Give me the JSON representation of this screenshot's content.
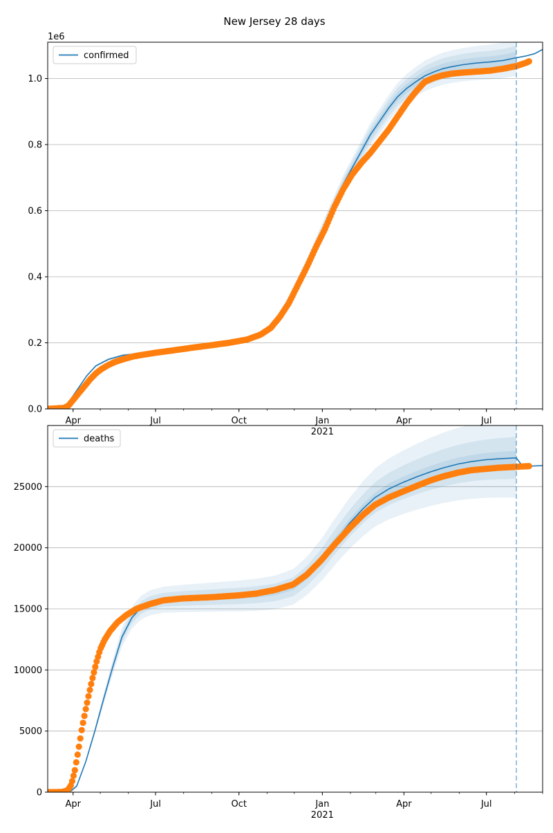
{
  "figure": {
    "title": "New Jersey 28 days"
  },
  "colors": {
    "model": "#1f77b4",
    "observed": "#ff7f0e",
    "grid": "#b0b0b0",
    "band": "#1f77b4"
  },
  "chart_data": [
    {
      "type": "line",
      "name": "confirmed",
      "legend": "confirmed",
      "legend_position": "upper left",
      "exponent_label": "1e6",
      "grid": "y",
      "x_ticks": [
        {
          "date": "2020-04-01",
          "label": "Apr"
        },
        {
          "date": "2020-07-01",
          "label": "Jul"
        },
        {
          "date": "2020-10-01",
          "label": "Oct"
        },
        {
          "date": "2021-01-01",
          "label": "Jan",
          "sublabel": "2021"
        },
        {
          "date": "2021-04-01",
          "label": "Apr"
        },
        {
          "date": "2021-07-01",
          "label": "Jul"
        }
      ],
      "y_ticks": [
        0,
        0.2,
        0.4,
        0.6,
        0.8,
        1.0
      ],
      "ylim": [
        0,
        1.11
      ],
      "xlim": [
        "2020-03-04",
        "2021-09-01"
      ],
      "forecast_start": "2021-08-03",
      "model": [
        [
          "2020-03-04",
          0
        ],
        [
          "2020-03-20",
          0.005
        ],
        [
          "2020-03-27",
          0.02
        ],
        [
          "2020-04-06",
          0.06
        ],
        [
          "2020-04-16",
          0.1
        ],
        [
          "2020-04-26",
          0.13
        ],
        [
          "2020-05-10",
          0.15
        ],
        [
          "2020-05-26",
          0.162
        ],
        [
          "2020-06-15",
          0.168
        ],
        [
          "2020-07-01",
          0.172
        ],
        [
          "2020-07-22",
          0.178
        ],
        [
          "2020-08-12",
          0.185
        ],
        [
          "2020-09-01",
          0.192
        ],
        [
          "2020-09-21",
          0.2
        ],
        [
          "2020-10-11",
          0.212
        ],
        [
          "2020-10-25",
          0.226
        ],
        [
          "2020-11-05",
          0.25
        ],
        [
          "2020-11-15",
          0.285
        ],
        [
          "2020-11-25",
          0.33
        ],
        [
          "2020-12-05",
          0.385
        ],
        [
          "2020-12-15",
          0.44
        ],
        [
          "2020-12-25",
          0.5
        ],
        [
          "2021-01-04",
          0.56
        ],
        [
          "2021-01-14",
          0.62
        ],
        [
          "2021-01-24",
          0.68
        ],
        [
          "2021-02-03",
          0.73
        ],
        [
          "2021-02-13",
          0.78
        ],
        [
          "2021-02-23",
          0.83
        ],
        [
          "2021-03-05",
          0.87
        ],
        [
          "2021-03-15",
          0.91
        ],
        [
          "2021-03-25",
          0.945
        ],
        [
          "2021-04-04",
          0.97
        ],
        [
          "2021-04-14",
          0.99
        ],
        [
          "2021-04-24",
          1.008
        ],
        [
          "2021-05-04",
          1.02
        ],
        [
          "2021-05-14",
          1.03
        ],
        [
          "2021-05-24",
          1.036
        ],
        [
          "2021-06-05",
          1.042
        ],
        [
          "2021-06-20",
          1.047
        ],
        [
          "2021-07-05",
          1.05
        ],
        [
          "2021-07-20",
          1.055
        ],
        [
          "2021-08-03",
          1.063
        ],
        [
          "2021-08-13",
          1.068
        ],
        [
          "2021-08-23",
          1.075
        ],
        [
          "2021-09-01",
          1.088
        ]
      ],
      "observed": [
        [
          "2020-03-04",
          0
        ],
        [
          "2020-03-22",
          0.003
        ],
        [
          "2020-03-27",
          0.01
        ],
        [
          "2020-04-02",
          0.03
        ],
        [
          "2020-04-08",
          0.05
        ],
        [
          "2020-04-14",
          0.07
        ],
        [
          "2020-04-20",
          0.09
        ],
        [
          "2020-04-26",
          0.107
        ],
        [
          "2020-05-02",
          0.12
        ],
        [
          "2020-05-10",
          0.133
        ],
        [
          "2020-05-18",
          0.143
        ],
        [
          "2020-05-26",
          0.15
        ],
        [
          "2020-06-05",
          0.158
        ],
        [
          "2020-06-15",
          0.163
        ],
        [
          "2020-07-01",
          0.17
        ],
        [
          "2020-07-20",
          0.177
        ],
        [
          "2020-08-10",
          0.185
        ],
        [
          "2020-09-01",
          0.193
        ],
        [
          "2020-09-20",
          0.2
        ],
        [
          "2020-10-10",
          0.21
        ],
        [
          "2020-10-25",
          0.225
        ],
        [
          "2020-11-05",
          0.245
        ],
        [
          "2020-11-15",
          0.278
        ],
        [
          "2020-11-25",
          0.32
        ],
        [
          "2020-12-05",
          0.375
        ],
        [
          "2020-12-15",
          0.43
        ],
        [
          "2020-12-25",
          0.49
        ],
        [
          "2021-01-04",
          0.545
        ],
        [
          "2021-01-14",
          0.61
        ],
        [
          "2021-01-24",
          0.665
        ],
        [
          "2021-02-03",
          0.71
        ],
        [
          "2021-02-13",
          0.745
        ],
        [
          "2021-02-23",
          0.775
        ],
        [
          "2021-03-05",
          0.81
        ],
        [
          "2021-03-15",
          0.845
        ],
        [
          "2021-03-25",
          0.885
        ],
        [
          "2021-04-04",
          0.925
        ],
        [
          "2021-04-14",
          0.96
        ],
        [
          "2021-04-24",
          0.99
        ],
        [
          "2021-05-04",
          1.002
        ],
        [
          "2021-05-14",
          1.01
        ],
        [
          "2021-05-24",
          1.015
        ],
        [
          "2021-06-05",
          1.018
        ],
        [
          "2021-06-20",
          1.021
        ],
        [
          "2021-07-05",
          1.024
        ],
        [
          "2021-07-20",
          1.03
        ],
        [
          "2021-08-03",
          1.038
        ],
        [
          "2021-08-13",
          1.047
        ],
        [
          "2021-08-17",
          1.052
        ]
      ],
      "band_widths": [
        0.012,
        0.024,
        0.037
      ],
      "band_growth": "relative"
    },
    {
      "type": "line",
      "name": "deaths",
      "legend": "deaths",
      "legend_position": "upper left",
      "exponent_label": "",
      "grid": "y",
      "x_ticks": [
        {
          "date": "2020-04-01",
          "label": "Apr"
        },
        {
          "date": "2020-07-01",
          "label": "Jul"
        },
        {
          "date": "2020-10-01",
          "label": "Oct"
        },
        {
          "date": "2021-01-01",
          "label": "Jan",
          "sublabel": "2021"
        },
        {
          "date": "2021-04-01",
          "label": "Apr"
        },
        {
          "date": "2021-07-01",
          "label": "Jul"
        }
      ],
      "y_ticks": [
        0,
        5000,
        10000,
        15000,
        20000,
        25000
      ],
      "ylim": [
        0,
        30000
      ],
      "xlim": [
        "2020-03-04",
        "2021-09-01"
      ],
      "forecast_start": "2021-08-03",
      "model": [
        [
          "2020-03-04",
          0
        ],
        [
          "2020-03-28",
          0
        ],
        [
          "2020-04-05",
          500
        ],
        [
          "2020-04-15",
          2500
        ],
        [
          "2020-04-25",
          5000
        ],
        [
          "2020-05-05",
          7700
        ],
        [
          "2020-05-15",
          10300
        ],
        [
          "2020-05-25",
          12700
        ],
        [
          "2020-06-05",
          14300
        ],
        [
          "2020-06-15",
          15100
        ],
        [
          "2020-06-25",
          15500
        ],
        [
          "2020-07-10",
          15750
        ],
        [
          "2020-07-31",
          15850
        ],
        [
          "2020-08-31",
          15950
        ],
        [
          "2020-09-30",
          16050
        ],
        [
          "2020-10-20",
          16150
        ],
        [
          "2020-11-10",
          16350
        ],
        [
          "2020-11-30",
          16800
        ],
        [
          "2020-12-15",
          17700
        ],
        [
          "2020-12-31",
          19000
        ],
        [
          "2021-01-15",
          20500
        ],
        [
          "2021-01-31",
          22000
        ],
        [
          "2021-02-15",
          23200
        ],
        [
          "2021-02-28",
          24100
        ],
        [
          "2021-03-15",
          24800
        ],
        [
          "2021-03-31",
          25350
        ],
        [
          "2021-04-15",
          25800
        ],
        [
          "2021-04-30",
          26200
        ],
        [
          "2021-05-15",
          26550
        ],
        [
          "2021-05-31",
          26850
        ],
        [
          "2021-06-15",
          27050
        ],
        [
          "2021-06-30",
          27200
        ],
        [
          "2021-07-15",
          27280
        ],
        [
          "2021-08-03",
          27350
        ],
        [
          "2021-08-10",
          26650
        ],
        [
          "2021-09-01",
          26720
        ]
      ],
      "observed": [
        [
          "2020-03-04",
          0
        ],
        [
          "2020-03-20",
          20
        ],
        [
          "2020-03-26",
          150
        ],
        [
          "2020-03-30",
          600
        ],
        [
          "2020-04-03",
          1800
        ],
        [
          "2020-04-07",
          3500
        ],
        [
          "2020-04-11",
          5300
        ],
        [
          "2020-04-15",
          6800
        ],
        [
          "2020-04-19",
          8200
        ],
        [
          "2020-04-23",
          9500
        ],
        [
          "2020-04-27",
          10700
        ],
        [
          "2020-05-01",
          11700
        ],
        [
          "2020-05-06",
          12500
        ],
        [
          "2020-05-12",
          13200
        ],
        [
          "2020-05-20",
          13900
        ],
        [
          "2020-05-30",
          14500
        ],
        [
          "2020-06-10",
          15000
        ],
        [
          "2020-06-25",
          15400
        ],
        [
          "2020-07-10",
          15700
        ],
        [
          "2020-07-31",
          15850
        ],
        [
          "2020-08-31",
          15950
        ],
        [
          "2020-09-30",
          16100
        ],
        [
          "2020-10-20",
          16250
        ],
        [
          "2020-11-10",
          16550
        ],
        [
          "2020-11-30",
          17000
        ],
        [
          "2020-12-15",
          17800
        ],
        [
          "2020-12-31",
          19000
        ],
        [
          "2021-01-15",
          20300
        ],
        [
          "2021-01-31",
          21600
        ],
        [
          "2021-02-15",
          22700
        ],
        [
          "2021-02-28",
          23500
        ],
        [
          "2021-03-15",
          24100
        ],
        [
          "2021-03-31",
          24600
        ],
        [
          "2021-04-15",
          25050
        ],
        [
          "2021-04-30",
          25500
        ],
        [
          "2021-05-15",
          25850
        ],
        [
          "2021-05-31",
          26150
        ],
        [
          "2021-06-15",
          26350
        ],
        [
          "2021-06-30",
          26450
        ],
        [
          "2021-07-15",
          26550
        ],
        [
          "2021-08-03",
          26620
        ],
        [
          "2021-08-17",
          26680
        ]
      ],
      "band_widths": [
        0.015,
        0.045,
        0.085
      ],
      "band_growth": "relative"
    }
  ]
}
